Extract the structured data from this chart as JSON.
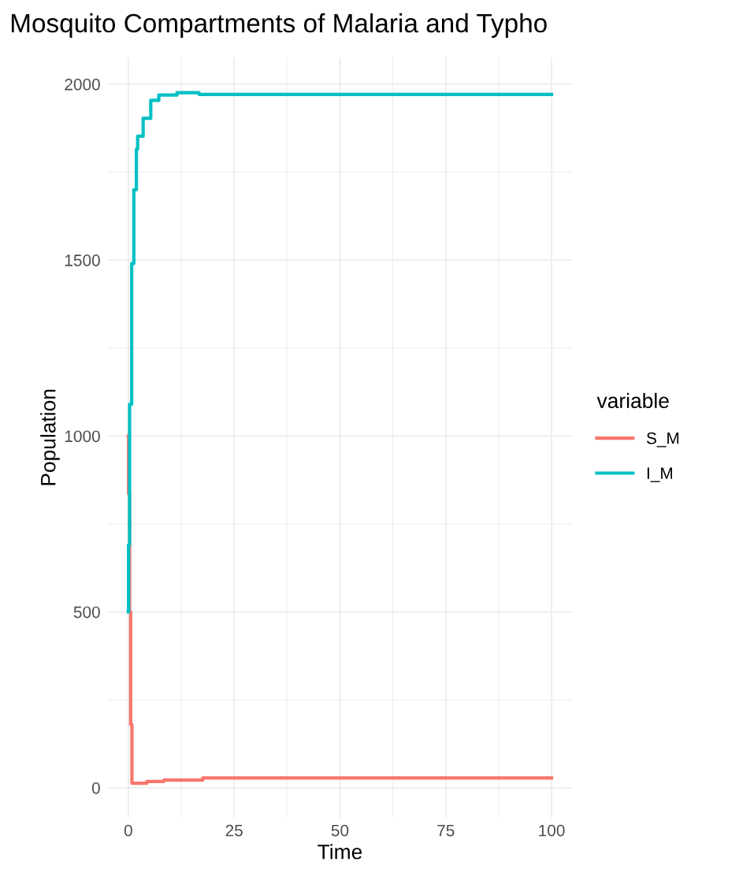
{
  "chart_data": {
    "type": "step",
    "title": "Mosquito Compartments of Malaria and Typho",
    "xlabel": "Time",
    "ylabel": "Population",
    "legend_title": "variable",
    "series": [
      {
        "name": "S_M",
        "color": "#f8766d",
        "x": [
          0,
          0.05,
          0.3,
          0.55,
          0.85,
          4.4,
          8.4,
          17.6,
          100
        ],
        "values": [
          1000,
          835,
          500,
          180,
          13,
          18,
          22,
          28,
          28
        ]
      },
      {
        "name": "I_M",
        "color": "#00bfc4",
        "x": [
          0,
          0.05,
          0.3,
          0.8,
          1.3,
          1.9,
          2.2,
          3.5,
          5.3,
          7.2,
          11.5,
          16.7,
          100
        ],
        "values": [
          500,
          690,
          1090,
          1490,
          1700,
          1815,
          1852,
          1903,
          1954,
          1969,
          1976,
          1971,
          1971
        ]
      }
    ],
    "xlim": [
      -5,
      105
    ],
    "ylim": [
      -85,
      2076
    ],
    "xticks": [
      0,
      25,
      50,
      75,
      100
    ],
    "yticks": [
      0,
      500,
      1000,
      1500,
      2000
    ],
    "grid": true,
    "legend": "right",
    "line_style": "solid",
    "marker": "none"
  }
}
